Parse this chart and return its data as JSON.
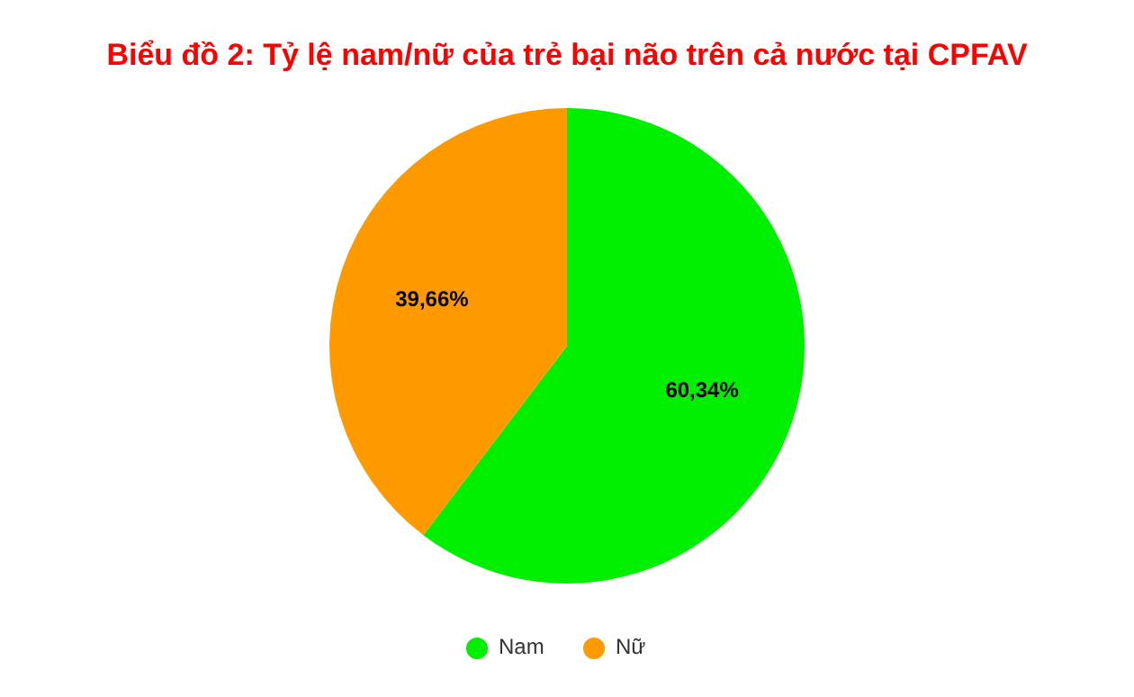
{
  "chart_data": {
    "type": "pie",
    "title": "Biểu đồ 2: Tỷ lệ nam/nữ của trẻ bại não trên cả nước tại CPFAV",
    "categories": [
      "Nam",
      "Nữ"
    ],
    "values": [
      60.34,
      39.66
    ],
    "colors": [
      "#00ee00",
      "#ff9900"
    ],
    "value_labels": [
      "60,34%",
      "39,66%"
    ],
    "legend": "bottom"
  }
}
